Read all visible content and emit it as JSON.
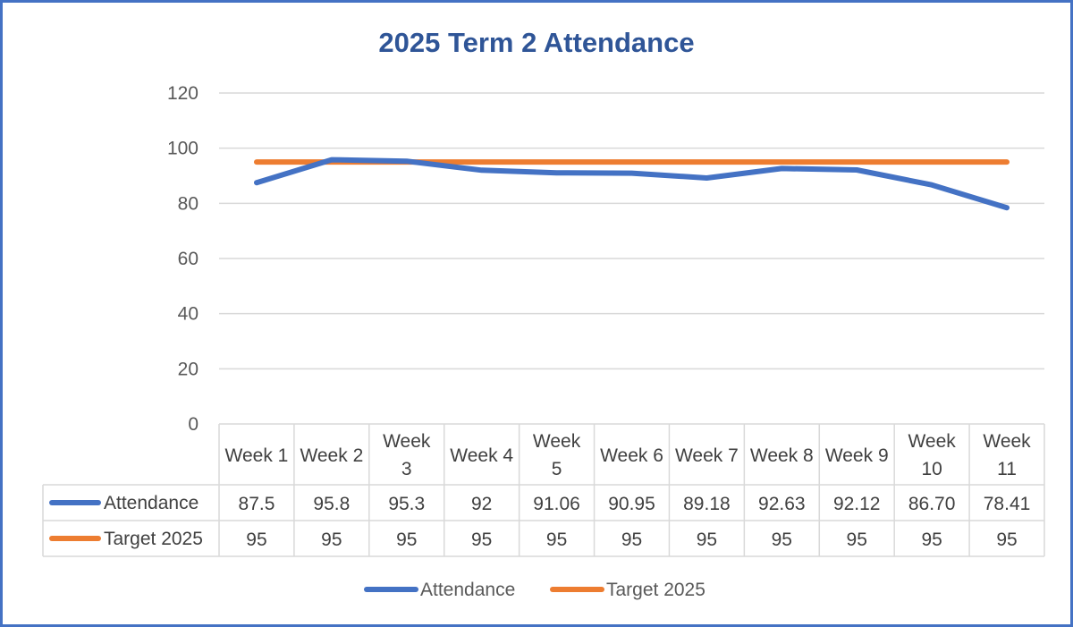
{
  "chart_data": {
    "type": "line",
    "title": "2025 Term 2 Attendance",
    "categories": [
      "Week 1",
      "Week 2",
      "Week 3",
      "Week 4",
      "Week 5",
      "Week 6",
      "Week 7",
      "Week 8",
      "Week 9",
      "Week 10",
      "Week 11"
    ],
    "category_lines": [
      [
        "Week 1"
      ],
      [
        "Week 2"
      ],
      [
        "Week",
        "3"
      ],
      [
        "Week 4"
      ],
      [
        "Week",
        "5"
      ],
      [
        "Week 6"
      ],
      [
        "Week 7"
      ],
      [
        "Week 8"
      ],
      [
        "Week 9"
      ],
      [
        "Week",
        "10"
      ],
      [
        "Week",
        "11"
      ]
    ],
    "yticks": [
      0,
      20,
      40,
      60,
      80,
      100,
      120
    ],
    "ylim": [
      0,
      120
    ],
    "grid": true,
    "legend_position": "bottom",
    "data_table": true,
    "series": [
      {
        "name": "Attendance",
        "color": "#4472c4",
        "values": [
          87.5,
          95.8,
          95.3,
          92,
          91.06,
          90.95,
          89.18,
          92.63,
          92.12,
          86.7,
          78.41
        ],
        "labels": [
          "87.5",
          "95.8",
          "95.3",
          "92",
          "91.06",
          "90.95",
          "89.18",
          "92.63",
          "92.12",
          "86.70",
          "78.41"
        ]
      },
      {
        "name": "Target 2025",
        "color": "#ed7d31",
        "values": [
          95,
          95,
          95,
          95,
          95,
          95,
          95,
          95,
          95,
          95,
          95
        ],
        "labels": [
          "95",
          "95",
          "95",
          "95",
          "95",
          "95",
          "95",
          "95",
          "95",
          "95",
          "95"
        ]
      }
    ]
  }
}
